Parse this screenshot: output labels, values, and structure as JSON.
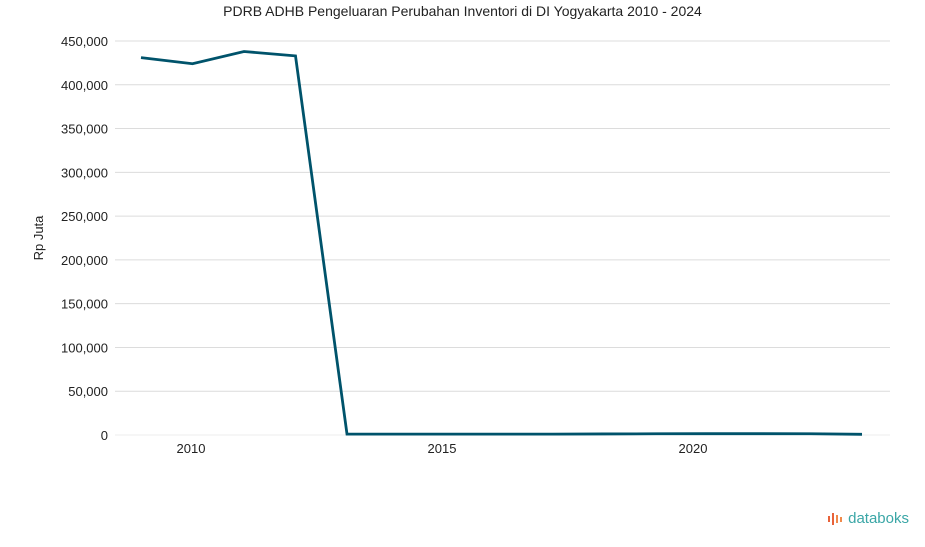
{
  "chart_data": {
    "type": "line",
    "title": "PDRB ADHB Pengeluaran Perubahan Inventori di DI Yogyakarta 2010 - 2024",
    "xlabel": "",
    "ylabel": "Rp Juta",
    "x": [
      2010,
      2011,
      2012,
      2013,
      2014,
      2015,
      2016,
      2017,
      2018,
      2019,
      2020,
      2021,
      2022,
      2023,
      2024
    ],
    "values": [
      431000,
      424000,
      438000,
      433000,
      1000,
      1000,
      1000,
      1000,
      1000,
      1200,
      1400,
      1500,
      1500,
      1400,
      800
    ],
    "ylim": [
      0,
      450000
    ],
    "yticks": [
      "0",
      "50,000",
      "100,000",
      "150,000",
      "200,000",
      "250,000",
      "300,000",
      "350,000",
      "400,000",
      "450,000"
    ],
    "xticks": [
      "2010",
      "2015",
      "2020"
    ],
    "grid": true,
    "line_color": "#00536b"
  },
  "brand": "databoks"
}
